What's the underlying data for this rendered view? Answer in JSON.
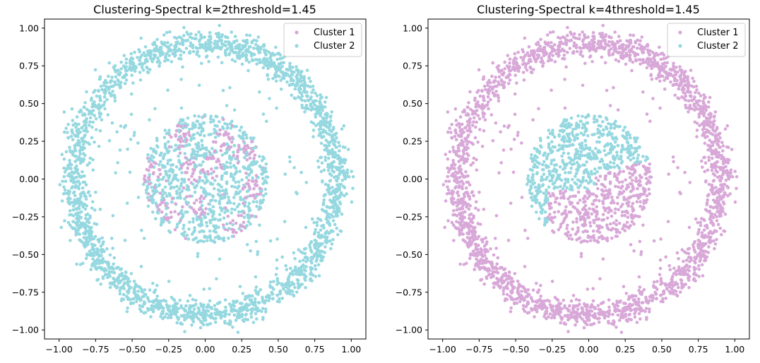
{
  "chart_data": [
    {
      "type": "scatter",
      "title": "Clustering-Spectral k=2threshold=1.45",
      "xlabel": "",
      "ylabel": "",
      "xlim": [
        -1.1,
        1.1
      ],
      "ylim": [
        -1.06,
        1.06
      ],
      "xticks": [
        "−1.00",
        "−0.75",
        "−0.50",
        "−0.25",
        "0.00",
        "0.25",
        "0.50",
        "0.75",
        "1.00"
      ],
      "yticks": [
        "−1.00",
        "−0.75",
        "−0.50",
        "−0.25",
        "0.00",
        "0.25",
        "0.50",
        "0.75",
        "1.00"
      ],
      "legend_position": "top-right",
      "grid": false,
      "series": [
        {
          "name": "Cluster 1",
          "color": "#d8a8d8",
          "region": "scattered patches within the inner disk",
          "inner_disk_radius": 0.43,
          "approx_count": 240
        },
        {
          "name": "Cluster 2",
          "color": "#96d8e0",
          "region": "outer ring (radius 0.8–1.0), inner disk (radius < 0.43) and sparse points between",
          "ring_inner_radius": 0.8,
          "ring_outer_radius": 1.0,
          "approx_count": 2900
        }
      ]
    },
    {
      "type": "scatter",
      "title": "Clustering-Spectral k=4threshold=1.45",
      "xlabel": "",
      "ylabel": "",
      "xlim": [
        -1.1,
        1.1
      ],
      "ylim": [
        -1.06,
        1.06
      ],
      "xticks": [
        "−1.00",
        "−0.75",
        "−0.50",
        "−0.25",
        "0.00",
        "0.25",
        "0.50",
        "0.75",
        "1.00"
      ],
      "yticks": [
        "−1.00",
        "−0.75",
        "−0.50",
        "−0.25",
        "0.00",
        "0.25",
        "0.50",
        "0.75",
        "1.00"
      ],
      "legend_position": "top-right",
      "grid": false,
      "series": [
        {
          "name": "Cluster 1",
          "color": "#d8a8d8",
          "region": "outer ring (radius 0.8–1.0), sparse middle points and lower-right part of inner disk",
          "ring_inner_radius": 0.8,
          "ring_outer_radius": 1.0,
          "approx_count": 2200
        },
        {
          "name": "Cluster 2",
          "color": "#96d8e0",
          "region": "upper / left part of inner disk (radius < 0.43)",
          "inner_disk_radius": 0.43,
          "approx_count": 900
        }
      ]
    }
  ]
}
